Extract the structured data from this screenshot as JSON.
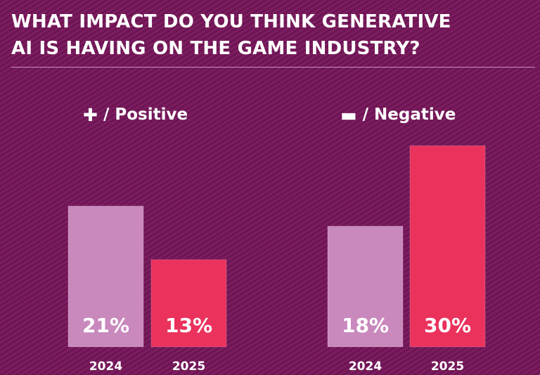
{
  "title": {
    "line1": "WHAT IMPACT DO YOU THINK GENERATIVE",
    "line2": "AI IS HAVING ON THE GAME INDUSTRY?"
  },
  "groups": [
    {
      "symbol": "✚",
      "label": "/ Positive"
    },
    {
      "symbol": "▬",
      "label": "/ Negative"
    }
  ],
  "colors": {
    "background": "#7a1b5e",
    "bar_2024": "#c989bd",
    "bar_2025": "#ea325d",
    "text": "#ffffff"
  },
  "chart_data": {
    "type": "bar",
    "title": "WHAT IMPACT DO YOU THINK GENERATIVE AI IS HAVING ON THE GAME INDUSTRY?",
    "groups": [
      "/ Positive",
      "/ Negative"
    ],
    "categories": [
      "2024",
      "2025"
    ],
    "series": [
      {
        "group": "/ Positive",
        "values": [
          21,
          13
        ],
        "labels": [
          "21%",
          "13%"
        ]
      },
      {
        "group": "/ Negative",
        "values": [
          18,
          30
        ],
        "labels": [
          "18%",
          "30%"
        ]
      }
    ],
    "unit": "%",
    "ylim": [
      0,
      30
    ],
    "grid": false
  }
}
